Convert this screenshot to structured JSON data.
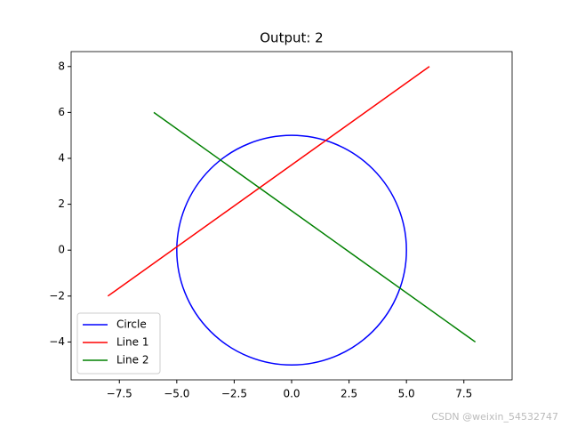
{
  "chart_data": {
    "type": "line",
    "title": "Output: 2",
    "series": [
      {
        "name": "Circle",
        "color": "#0000ff",
        "shape": "circle",
        "center": [
          0,
          0
        ],
        "radius": 5
      },
      {
        "name": "Line 1",
        "color": "#ff0000",
        "x": [
          -8,
          6
        ],
        "values": [
          -2,
          8
        ]
      },
      {
        "name": "Line 2",
        "color": "#008000",
        "x": [
          -6,
          8
        ],
        "values": [
          6,
          -4
        ]
      }
    ],
    "xlim": [
      -9.6,
      9.6
    ],
    "ylim": [
      -5.65,
      8.65
    ],
    "xticks": [
      {
        "value": -7.5,
        "label": "−7.5"
      },
      {
        "value": -5,
        "label": "−5.0"
      },
      {
        "value": -2.5,
        "label": "−2.5"
      },
      {
        "value": 0,
        "label": "0.0"
      },
      2.5,
      {
        "value": 5,
        "label": "5.0"
      },
      7.5
    ],
    "yticks": [
      {
        "value": -4,
        "label": "−4"
      },
      {
        "value": -2,
        "label": "−2"
      },
      0,
      2,
      4,
      6,
      8
    ],
    "grid": false,
    "legend": "lower left"
  },
  "watermark": "CSDN @weixin_54532747"
}
